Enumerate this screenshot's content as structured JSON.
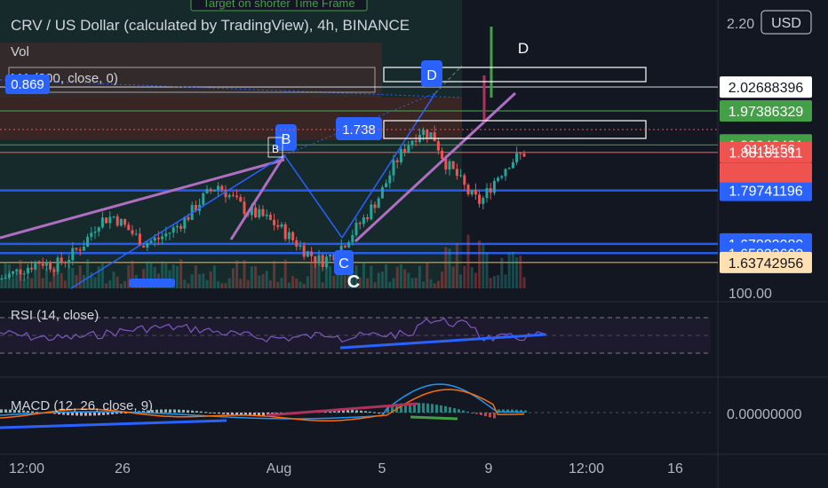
{
  "header": {
    "title": "CRV / US Dollar (calculated by TradingView), 4h, BINANCE",
    "vol_label": "Vol",
    "ma_label": "MA (200, close, 0)",
    "ma_value": "0.869",
    "top_note": "Target on shorter Time Frame",
    "currency": "USD"
  },
  "annotations": {
    "D_main": "D",
    "D_target": "D",
    "B_marker": "B",
    "B_text": "B",
    "C_marker": "C",
    "C_text": "C",
    "target_box_label": "1.738"
  },
  "price_axis": {
    "top_partial": "2.20",
    "tags": [
      {
        "label": "2.02688396",
        "price": 2.02688396,
        "bg": "#ffffff",
        "fg": "#131722"
      },
      {
        "label": "1.97386329",
        "price": 1.97386329,
        "bg": "#43a047",
        "fg": "#ffffff"
      },
      {
        "label": "1.89843481",
        "price": 1.89843481,
        "bg": "#43a047",
        "fg": "#ffffff"
      },
      {
        "label": "1.88181311",
        "price": 1.88181311,
        "bg": "#ef5350",
        "fg": "#ffffff"
      },
      {
        "label": "1.79741196",
        "price": 1.79741196,
        "bg": "#2962ff",
        "fg": "#ffffff"
      },
      {
        "label": "1.67882989",
        "price": 1.67882989,
        "bg": "#2962ff",
        "fg": "#ffffff"
      },
      {
        "label": "1.65823603",
        "price": 1.65823603,
        "bg": "#2962ff",
        "fg": "#ffffff"
      },
      {
        "label": "1.63742956",
        "price": 1.63742956,
        "bg": "#ffe0b2",
        "fg": "#131722"
      }
    ],
    "countdown": "01:11:56",
    "rsi_tick": "100.00",
    "macd_tick": "0.00000000"
  },
  "time_axis": {
    "ticks": [
      {
        "label": "12:00",
        "pos": 0
      },
      {
        "label": "26",
        "pos": 1
      },
      {
        "label": "Aug",
        "pos": 2
      },
      {
        "label": "5",
        "pos": 3
      },
      {
        "label": "9",
        "pos": 4
      },
      {
        "label": "12:00",
        "pos": 5
      },
      {
        "label": "16",
        "pos": 6
      }
    ]
  },
  "indicators": {
    "rsi_label": "RSI (14, close)",
    "macd_label": "MACD (12, 26, close, 9)"
  },
  "colors": {
    "background": "#131722",
    "up": "#26a69a",
    "down": "#ef5350",
    "blue_line": "#2962ff",
    "green_line": "#43a047",
    "rsi_line": "#7e57c2",
    "macd_line": "#2196f3",
    "signal_line": "#ff6d00"
  },
  "chart_data": {
    "type": "candlestick",
    "title": "CRV / US Dollar (calculated by TradingView), 4h, BINANCE",
    "x_ticks": [
      "12:00",
      "26",
      "Aug",
      "5",
      "9",
      "12:00",
      "16"
    ],
    "y_range": [
      1.58,
      2.22
    ],
    "horizontal_levels": [
      2.02688396,
      1.97386329,
      1.89843481,
      1.88181311,
      1.79741196,
      1.67882989,
      1.65823603,
      1.63742956
    ],
    "close_path": [
      [
        0,
        1.6
      ],
      [
        20,
        1.62
      ],
      [
        40,
        1.64
      ],
      [
        55,
        1.63
      ],
      [
        70,
        1.65
      ],
      [
        85,
        1.68
      ],
      [
        100,
        1.73
      ],
      [
        115,
        1.74
      ],
      [
        130,
        1.71
      ],
      [
        145,
        1.68
      ],
      [
        160,
        1.69
      ],
      [
        175,
        1.71
      ],
      [
        190,
        1.74
      ],
      [
        205,
        1.78
      ],
      [
        220,
        1.81
      ],
      [
        235,
        1.78
      ],
      [
        250,
        1.75
      ],
      [
        265,
        1.74
      ],
      [
        280,
        1.72
      ],
      [
        295,
        1.69
      ],
      [
        310,
        1.66
      ],
      [
        325,
        1.64
      ],
      [
        340,
        1.66
      ],
      [
        355,
        1.7
      ],
      [
        370,
        1.74
      ],
      [
        385,
        1.79
      ],
      [
        400,
        1.86
      ],
      [
        412,
        1.9
      ],
      [
        425,
        1.93
      ],
      [
        438,
        1.92
      ],
      [
        450,
        1.86
      ],
      [
        462,
        1.83
      ],
      [
        474,
        1.79
      ],
      [
        486,
        1.77
      ],
      [
        500,
        1.82
      ],
      [
        515,
        1.86
      ],
      [
        530,
        1.88
      ]
    ],
    "rsi_range": [
      0,
      100
    ],
    "macd_zero": 0
  }
}
